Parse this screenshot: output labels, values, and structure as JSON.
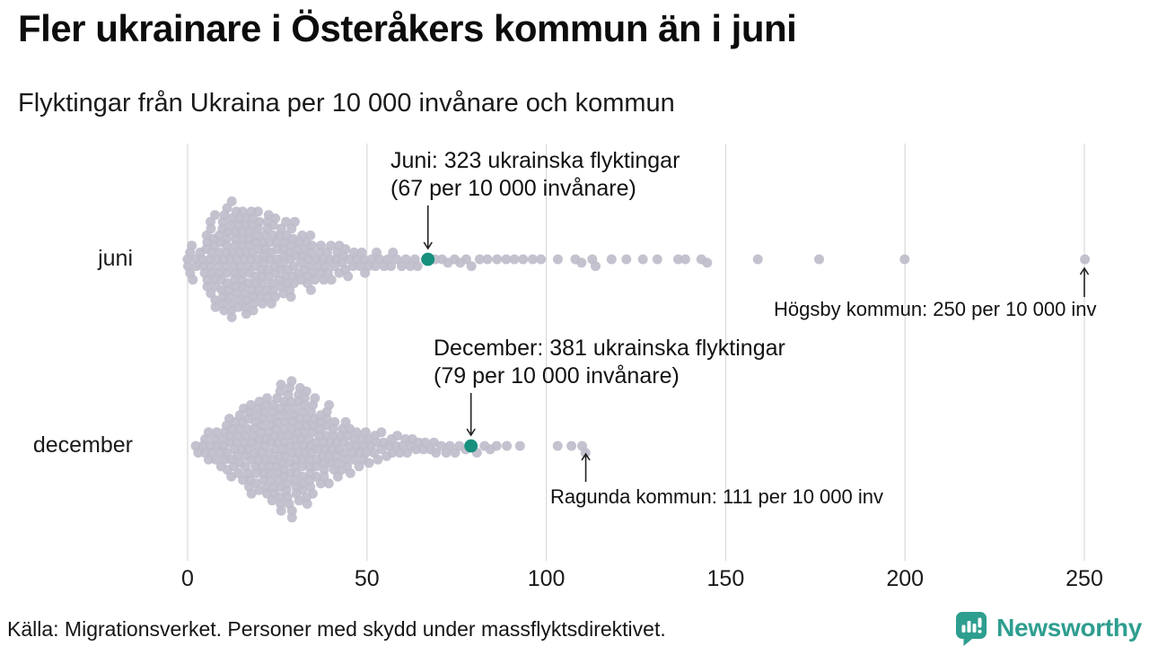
{
  "title": "Fler ukrainare i Österåkers kommun än i juni",
  "subtitle": "Flyktingar från Ukraina per 10 000 invånare och kommun",
  "footer": {
    "source": "Källa: Migrationsverket. Personer med skydd under massflyktsdirektivet."
  },
  "brand": {
    "name": "Newsworthy",
    "color": "#2E9E8F",
    "icon": "newsworthy-speech-bubble-bar-chart-icon"
  },
  "colors": {
    "dot": "#BFBDCB",
    "highlight": "#17907E",
    "gridline": "#D9D9D9",
    "arrow": "#222222",
    "text": "#111111"
  },
  "chart_data": {
    "type": "scatter",
    "variant": "beeswarm strip plot, one row per month",
    "title": "Flyktingar från Ukraina per 10 000 invånare och kommun",
    "xlabel": "",
    "ylabel": "",
    "unit": "flyktingar per 10 000 invånare",
    "x_axis": {
      "min": 0,
      "max": 250,
      "ticks": [
        0,
        50,
        100,
        150,
        200,
        250
      ],
      "gridlines": "vertical"
    },
    "legend": "none",
    "rows": [
      {
        "label": "juni",
        "highlight_point": {
          "municipality": "Österåkers kommun",
          "value": 67,
          "refugees": 323
        },
        "max_point": {
          "municipality": "Högsby kommun",
          "value": 250
        },
        "distribution_bins_estimated": [
          [
            0,
            1,
            4
          ],
          [
            1,
            5,
            8
          ],
          [
            5,
            10,
            30
          ],
          [
            10,
            15,
            40
          ],
          [
            15,
            20,
            38
          ],
          [
            20,
            25,
            32
          ],
          [
            25,
            30,
            26
          ],
          [
            30,
            35,
            20
          ],
          [
            35,
            40,
            14
          ],
          [
            40,
            45,
            11
          ],
          [
            45,
            50,
            8
          ],
          [
            50,
            55,
            6
          ],
          [
            55,
            60,
            5
          ],
          [
            60,
            65,
            4
          ],
          [
            65,
            70,
            2
          ],
          [
            70,
            75,
            3
          ],
          [
            75,
            80,
            3
          ],
          [
            80,
            85,
            2
          ],
          [
            85,
            90,
            2
          ],
          [
            90,
            95,
            2
          ],
          [
            95,
            100,
            2
          ]
        ],
        "tail_values_estimated": [
          103,
          108,
          110,
          113,
          114,
          118,
          122,
          127,
          131,
          137,
          139,
          143,
          145,
          159,
          176,
          200,
          250
        ]
      },
      {
        "label": "december",
        "highlight_point": {
          "municipality": "Österåkers kommun",
          "value": 79,
          "refugees": 381
        },
        "max_point": {
          "municipality": "Ragunda kommun",
          "value": 111
        },
        "distribution_bins_estimated": [
          [
            2,
            5,
            4
          ],
          [
            5,
            10,
            12
          ],
          [
            10,
            15,
            22
          ],
          [
            15,
            20,
            30
          ],
          [
            20,
            25,
            38
          ],
          [
            25,
            30,
            46
          ],
          [
            30,
            35,
            42
          ],
          [
            35,
            40,
            28
          ],
          [
            40,
            45,
            20
          ],
          [
            45,
            50,
            14
          ],
          [
            50,
            55,
            10
          ],
          [
            55,
            60,
            8
          ],
          [
            60,
            65,
            6
          ],
          [
            65,
            70,
            5
          ],
          [
            70,
            75,
            4
          ],
          [
            75,
            80,
            3
          ],
          [
            80,
            85,
            3
          ],
          [
            85,
            90,
            2
          ],
          [
            90,
            95,
            1
          ]
        ],
        "tail_values_estimated": [
          103,
          107,
          110,
          111
        ]
      }
    ],
    "annotations": [
      {
        "id": "juni-highlight",
        "line1": "Juni: 323 ukrainska flyktingar",
        "line2": "(67 per 10 000 invånare)",
        "points_to_value": 67,
        "row": "juni"
      },
      {
        "id": "december-highlight",
        "line1": "December: 381 ukrainska flyktingar",
        "line2": "(79 per 10 000 invånare)",
        "points_to_value": 79,
        "row": "december"
      },
      {
        "id": "juni-max",
        "text": "Högsby kommun: 250 per 10 000 inv",
        "points_to_value": 250,
        "row": "juni"
      },
      {
        "id": "december-max",
        "text": "Ragunda kommun: 111 per 10 000 inv",
        "points_to_value": 111,
        "row": "december"
      }
    ]
  }
}
